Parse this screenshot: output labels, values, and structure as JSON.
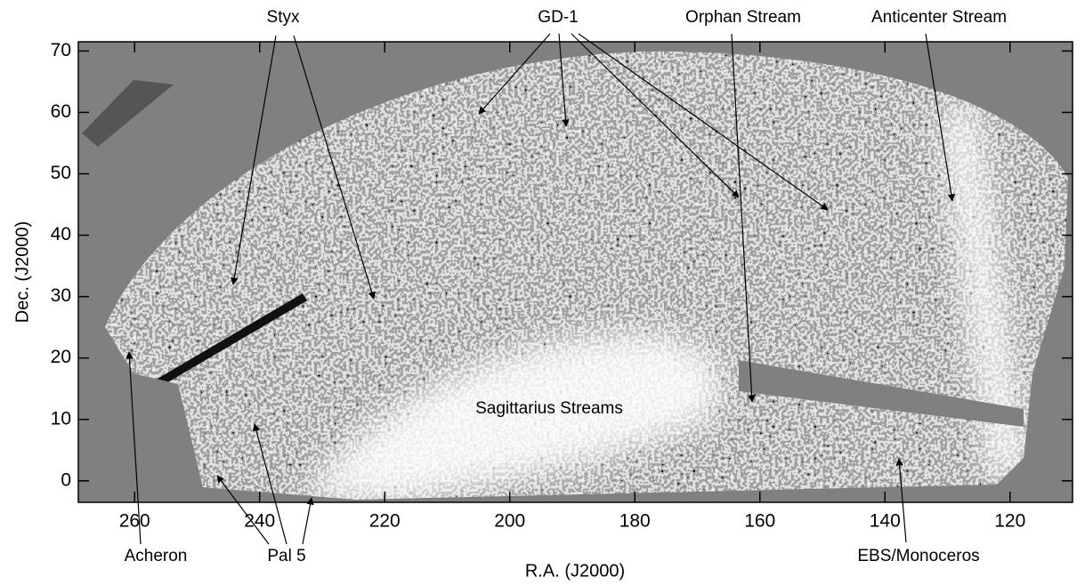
{
  "chart_data": {
    "type": "map",
    "x_label": "R.A. (J2000)",
    "y_label": "Dec. (J2000)",
    "xlim": [
      269,
      110
    ],
    "ylim": [
      -3.5,
      71.5
    ],
    "xticks": [
      260,
      240,
      220,
      200,
      180,
      160,
      140,
      120
    ],
    "yticks": [
      0,
      10,
      20,
      30,
      40,
      50,
      60,
      70
    ],
    "annotations": [
      "Styx",
      "GD-1",
      "Orphan Stream",
      "Anticenter Stream",
      "Sagittarius Streams",
      "Acheron",
      "Pal 5",
      "EBS/Monoceros"
    ]
  }
}
